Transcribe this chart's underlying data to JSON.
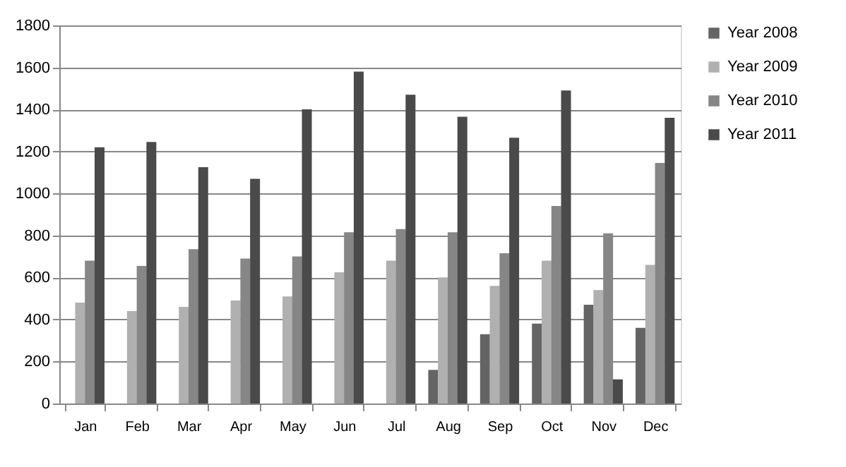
{
  "chart_data": {
    "type": "bar",
    "categories": [
      "Jan",
      "Feb",
      "Mar",
      "Apr",
      "May",
      "Jun",
      "Jul",
      "Aug",
      "Sep",
      "Oct",
      "Nov",
      "Dec"
    ],
    "series": [
      {
        "name": "Year 2008",
        "color": "#646464",
        "values": [
          null,
          null,
          null,
          null,
          null,
          null,
          null,
          160,
          330,
          380,
          470,
          360
        ]
      },
      {
        "name": "Year 2009",
        "color": "#b0b0b0",
        "values": [
          480,
          440,
          460,
          490,
          510,
          625,
          680,
          600,
          560,
          680,
          540,
          660
        ]
      },
      {
        "name": "Year 2010",
        "color": "#868686",
        "values": [
          680,
          655,
          735,
          690,
          700,
          815,
          830,
          815,
          715,
          940,
          810,
          1145
        ]
      },
      {
        "name": "Year 2011",
        "color": "#4a4a4a",
        "values": [
          1220,
          1245,
          1125,
          1070,
          1400,
          1580,
          1470,
          1365,
          1265,
          1490,
          115,
          1360
        ]
      }
    ],
    "ylim": [
      0,
      1800
    ],
    "yticks": [
      0,
      200,
      400,
      600,
      800,
      1000,
      1200,
      1400,
      1600,
      1800
    ],
    "grid": "y",
    "legend": "right"
  }
}
